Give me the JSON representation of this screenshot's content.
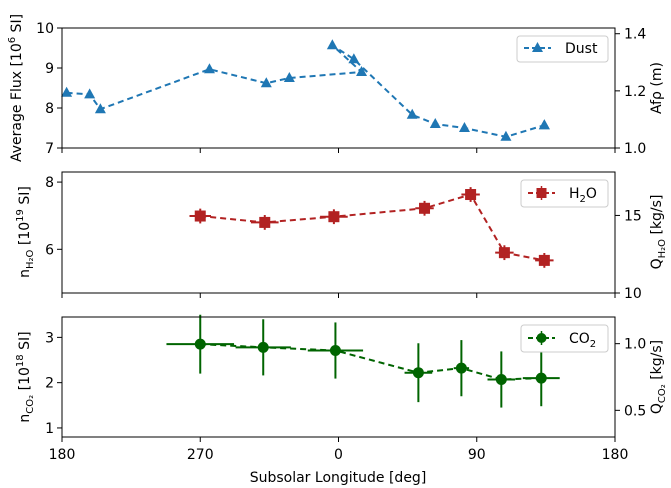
{
  "chart_data": [
    {
      "type": "line",
      "xlabel": "",
      "ylabel": "Average Flux [10^6 SI]",
      "ylabel_parts": {
        "base": "Average Flux [10",
        "sup": "6",
        "tail": " SI]"
      },
      "y2label": "Afρ (m)",
      "ylim": [
        7,
        10
      ],
      "y2lim": [
        1.0,
        1.42
      ],
      "yticks": [
        "7",
        "8",
        "9",
        "10"
      ],
      "y2ticks": [
        "1.0",
        "1.2",
        "1.4"
      ],
      "grid": false,
      "legend_position": "top-right",
      "series": [
        {
          "name": "Dust",
          "color": "#1f77b4",
          "marker": "triangle",
          "x": [
            175,
            160,
            155,
            144,
            133,
            129,
            118,
            103,
            95,
            79,
            64,
            59,
            49,
            38,
            30
          ],
          "y": [
            8.38,
            8.34,
            7.97,
            8.97,
            8.62,
            8.75,
            8.9,
            9.57,
            9.22,
            7.83,
            7.6,
            7.5,
            7.28,
            7.57,
            7.57
          ],
          "x_display": [
            183,
            198,
            205,
            276,
            313,
            328,
            375,
            356,
            370,
            48,
            63,
            82,
            109,
            134,
            134
          ]
        }
      ]
    },
    {
      "type": "line",
      "xlabel": "",
      "ylabel": "n_H2O [10^19 SI]",
      "ylabel_parts": {
        "base": "n",
        "sub": "H₂O",
        "mid": " [10",
        "sup": "19",
        "tail": " SI]"
      },
      "y2label": "Q_H2O [kg/s]",
      "y2label_parts": {
        "base": "Q",
        "sub": "H₂O",
        "tail": " [kg/s]"
      },
      "ylim": [
        4.7,
        8.3
      ],
      "y2lim": [
        10,
        17.8
      ],
      "yticks": [
        "6",
        "8"
      ],
      "y2ticks": [
        "10",
        "15"
      ],
      "grid": false,
      "legend_position": "top-right",
      "series": [
        {
          "name": "H₂O",
          "name_parts": {
            "base": "H",
            "sub": "2",
            "tail": "O"
          },
          "color": "#b22222",
          "marker": "square",
          "x": [
            270,
            312,
            357,
            56,
            86,
            108,
            134
          ],
          "y": [
            6.99,
            6.8,
            6.97,
            7.22,
            7.63,
            5.9,
            5.67
          ],
          "xerr": [
            7,
            9,
            9,
            6,
            6,
            6,
            6
          ],
          "yerr": [
            0.22,
            0.22,
            0.22,
            0.22,
            0.22,
            0.22,
            0.22
          ]
        }
      ]
    },
    {
      "type": "line",
      "xlabel": "Subsolar Longitude [deg]",
      "ylabel": "n_CO2 [10^18 SI]",
      "ylabel_parts": {
        "base": "n",
        "sub": "CO₂",
        "mid": " [10",
        "sup": "18",
        "tail": " SI]"
      },
      "y2label": "Q_CO2 [kg/s]",
      "y2label_parts": {
        "base": "Q",
        "sub": "CO₂",
        "tail": " [kg/s]"
      },
      "ylim": [
        0.8,
        3.45
      ],
      "y2lim": [
        0.3,
        1.2
      ],
      "yticks": [
        "1",
        "2",
        "3"
      ],
      "y2ticks": [
        "0.5",
        "1.0"
      ],
      "xticks": [
        "180",
        "270",
        "0",
        "90",
        "180"
      ],
      "grid": false,
      "legend_position": "top-right",
      "series": [
        {
          "name": "CO₂",
          "name_parts": {
            "base": "CO",
            "sub": "2"
          },
          "color": "#006400",
          "marker": "circle",
          "x": [
            270,
            311,
            358,
            52,
            80,
            106,
            132
          ],
          "y": [
            2.85,
            2.78,
            2.71,
            2.22,
            2.32,
            2.07,
            2.1
          ],
          "xerr": [
            22,
            18,
            18,
            9,
            5,
            9,
            12
          ],
          "yerr": [
            0.65,
            0.62,
            0.62,
            0.65,
            0.62,
            0.62,
            0.62
          ]
        }
      ]
    }
  ]
}
